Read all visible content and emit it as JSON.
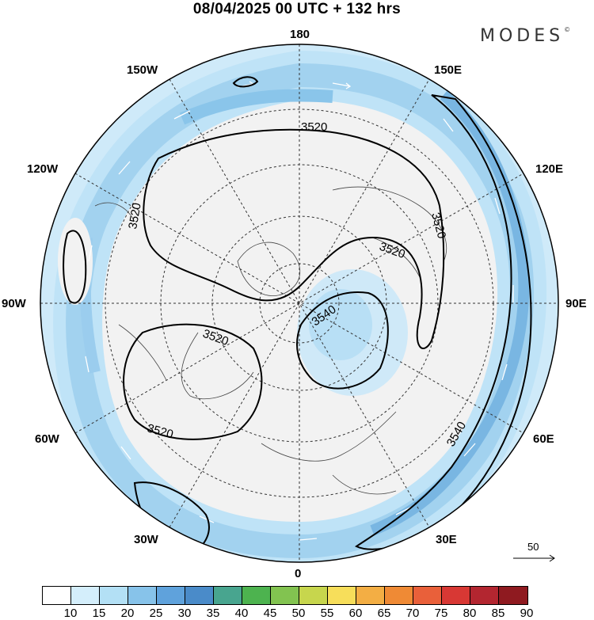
{
  "header": {
    "title": "08/04/2025  00 UTC  + 132 hrs",
    "brand": "MODES",
    "brand_mark": "©"
  },
  "map": {
    "projection": "north polar stereographic",
    "longitude_labels": {
      "top": "180",
      "bottom": "0",
      "left": "90W",
      "right": "90E",
      "upper_left": "150W",
      "upper_left2": "120W",
      "lower_left": "60W",
      "lower_left2": "30W",
      "upper_right": "150E",
      "upper_right2": "120E",
      "lower_right": "60E",
      "lower_right2": "30E"
    },
    "contour_labels": [
      "3520",
      "3520",
      "3520",
      "3520",
      "3520",
      "3520",
      "3540",
      "3540"
    ],
    "wind_vector_reference": "50",
    "colors": {
      "background": "#f2f2f2",
      "band_light": "#bfe3f7",
      "band_mid": "#a2d2ef",
      "band_strong": "#79b6e2",
      "vector": "#ffffff",
      "contour": "#000000"
    }
  },
  "colorbar": {
    "ticks": [
      "10",
      "15",
      "20",
      "25",
      "30",
      "35",
      "40",
      "45",
      "50",
      "55",
      "60",
      "65",
      "70",
      "75",
      "80",
      "85",
      "90"
    ],
    "colors": [
      "#ffffff",
      "#d4eefb",
      "#b3e0f5",
      "#87c3ea",
      "#5fa2dc",
      "#4a8bc9",
      "#48a58f",
      "#4db34f",
      "#82c350",
      "#c7d64d",
      "#f7de5a",
      "#f3ae44",
      "#ef8a35",
      "#e9603a",
      "#d83834",
      "#b32630",
      "#8f1a20"
    ]
  }
}
